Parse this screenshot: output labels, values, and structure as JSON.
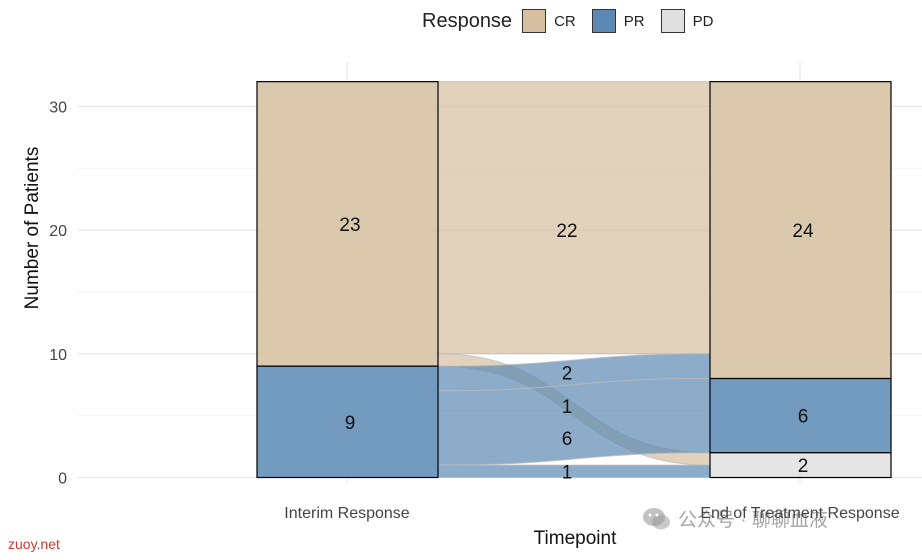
{
  "chart_data": {
    "type": "alluvial",
    "xlabel": "Timepoint",
    "ylabel": "Number of Patients",
    "ylim": [
      0,
      32
    ],
    "yticks": [
      0,
      10,
      20,
      30
    ],
    "grid": true,
    "legend": {
      "title": "Response",
      "position": "top",
      "entries": [
        {
          "label": "CR",
          "color": "#d5bfa0"
        },
        {
          "label": "PR",
          "color": "#5b89b4"
        },
        {
          "label": "PD",
          "color": "#e0e0e0"
        }
      ]
    },
    "axes": [
      "Interim Response",
      "End of Treatment Response"
    ],
    "strata": [
      {
        "axis": "Interim Response",
        "label": "CR",
        "value": 23
      },
      {
        "axis": "Interim Response",
        "label": "PR",
        "value": 9
      },
      {
        "axis": "End of Treatment Response",
        "label": "CR",
        "value": 24
      },
      {
        "axis": "End of Treatment Response",
        "label": "PR",
        "value": 6
      },
      {
        "axis": "End of Treatment Response",
        "label": "PD",
        "value": 2
      }
    ],
    "flows": [
      {
        "from": "CR",
        "to": "CR",
        "value": 22
      },
      {
        "from": "PR",
        "to": "CR",
        "value": 2
      },
      {
        "from": "PR",
        "to": "PR",
        "value": 6
      },
      {
        "from": "CR",
        "to": "PD",
        "value": 1
      },
      {
        "from": "PR",
        "to": "PD",
        "value": 1
      }
    ],
    "flow_labels": [
      {
        "text": "22",
        "y": 20
      },
      {
        "text": "2",
        "y": 8.5
      },
      {
        "text": "1",
        "y": 5.8
      },
      {
        "text": "6",
        "y": 3.2
      },
      {
        "text": "1",
        "y": 0.5
      }
    ]
  },
  "watermarks": {
    "left": "zuoy.net",
    "right": "公众号 · 聊聊血液"
  }
}
